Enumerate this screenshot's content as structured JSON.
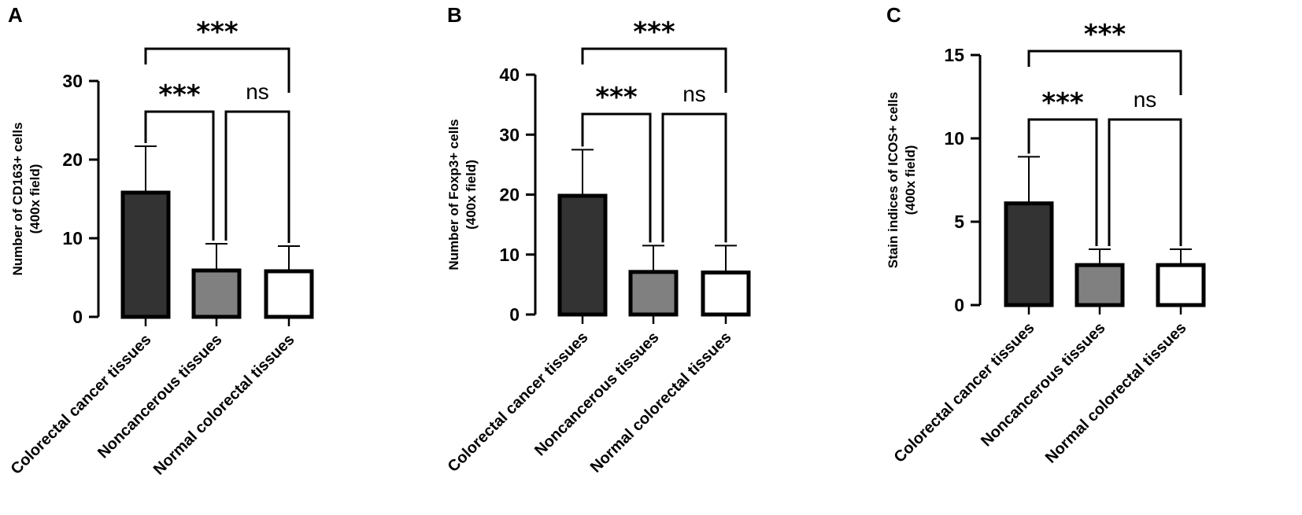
{
  "chart_data": [
    {
      "panel": "A",
      "type": "bar",
      "categories": [
        "Colorectal cancer tissues",
        "Noncancerous tissues",
        "Normal colorectal tissues"
      ],
      "values": [
        15.8,
        5.9,
        5.8
      ],
      "errors": [
        5.9,
        3.4,
        3.2
      ],
      "bar_colors": [
        "#333333",
        "#808080",
        "#ffffff"
      ],
      "ylabel": "Number of CD163+ cells\n(400x field)",
      "ylim": [
        0,
        30
      ],
      "yticks": [
        0,
        10,
        20,
        30
      ],
      "grid": false,
      "significance": [
        {
          "from": 0,
          "to": 1,
          "label": "***"
        },
        {
          "from": 1,
          "to": 2,
          "label": "ns"
        },
        {
          "from": 0,
          "to": 2,
          "label": "***"
        }
      ]
    },
    {
      "panel": "B",
      "type": "bar",
      "categories": [
        "Colorectal cancer tissues",
        "Noncancerous tissues",
        "Normal colorectal tissues"
      ],
      "values": [
        19.8,
        7.1,
        7.0
      ],
      "errors": [
        7.7,
        4.4,
        4.5
      ],
      "bar_colors": [
        "#333333",
        "#808080",
        "#ffffff"
      ],
      "ylabel": "Number of Foxp3+ cells\n(400x field)",
      "ylim": [
        0,
        40
      ],
      "yticks": [
        0,
        10,
        20,
        30,
        40
      ],
      "grid": false,
      "significance": [
        {
          "from": 0,
          "to": 1,
          "label": "***"
        },
        {
          "from": 1,
          "to": 2,
          "label": "ns"
        },
        {
          "from": 0,
          "to": 2,
          "label": "***"
        }
      ]
    },
    {
      "panel": "C",
      "type": "bar",
      "categories": [
        "Colorectal cancer tissues",
        "Noncancerous tissues",
        "Normal colorectal tissues"
      ],
      "values": [
        6.1,
        2.4,
        2.4
      ],
      "errors": [
        2.8,
        0.95,
        0.95
      ],
      "bar_colors": [
        "#333333",
        "#808080",
        "#ffffff"
      ],
      "ylabel": "Stain indices of  ICOS+ cells\n(400x field)",
      "ylim": [
        0,
        15
      ],
      "yticks": [
        0,
        5,
        10,
        15
      ],
      "grid": false,
      "significance": [
        {
          "from": 0,
          "to": 1,
          "label": "***"
        },
        {
          "from": 1,
          "to": 2,
          "label": "ns"
        },
        {
          "from": 0,
          "to": 2,
          "label": "***"
        }
      ]
    }
  ]
}
